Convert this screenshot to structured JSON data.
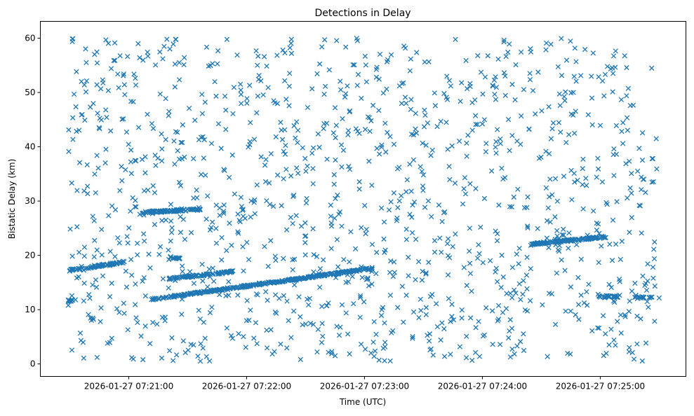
{
  "chart_data": {
    "type": "scatter",
    "title": "Detections in Delay",
    "xlabel": "Time (UTC)",
    "ylabel": "Bistatic Delay (km)",
    "x_unit": "seconds after 2026-01-27 07:20:00",
    "xlim": [
      15,
      343.6
    ],
    "ylim": [
      -2.3,
      63.1
    ],
    "x_ticks": [
      {
        "value": 60,
        "label": "2026-01-27 07:21:00"
      },
      {
        "value": 120,
        "label": "2026-01-27 07:22:00"
      },
      {
        "value": 180,
        "label": "2026-01-27 07:23:00"
      },
      {
        "value": 240,
        "label": "2026-01-27 07:24:00"
      },
      {
        "value": 300,
        "label": "2026-01-27 07:25:00"
      }
    ],
    "y_ticks": [
      {
        "value": 0,
        "label": "0"
      },
      {
        "value": 10,
        "label": "10"
      },
      {
        "value": 20,
        "label": "20"
      },
      {
        "value": 30,
        "label": "30"
      },
      {
        "value": 40,
        "label": "40"
      },
      {
        "value": 50,
        "label": "50"
      },
      {
        "value": 60,
        "label": "60"
      }
    ],
    "marker": "x",
    "color": "#1f77b4",
    "grid": false,
    "tracks": [
      {
        "t0": 29.3,
        "y0": 17.2,
        "t1": 57.9,
        "y1": 18.8,
        "n": 70
      },
      {
        "t0": 29.3,
        "y0": 11.7,
        "t1": 32.9,
        "y1": 11.7,
        "n": 12
      },
      {
        "t0": 72.1,
        "y0": 11.9,
        "t1": 183.9,
        "y1": 17.6,
        "n": 320
      },
      {
        "t0": 67.1,
        "y0": 27.9,
        "t1": 97.1,
        "y1": 28.5,
        "n": 90
      },
      {
        "t0": 80.0,
        "y0": 15.7,
        "t1": 113.2,
        "y1": 17.0,
        "n": 90
      },
      {
        "t0": 81.0,
        "y0": 19.6,
        "t1": 86.0,
        "y1": 19.4,
        "n": 15
      },
      {
        "t0": 265.0,
        "y0": 22.1,
        "t1": 303.0,
        "y1": 23.4,
        "n": 120
      },
      {
        "t0": 299.0,
        "y0": 12.4,
        "t1": 309.0,
        "y1": 12.4,
        "n": 30
      },
      {
        "t0": 317.0,
        "y0": 12.2,
        "t1": 330.0,
        "y1": 12.2,
        "n": 15
      }
    ],
    "noise": {
      "count": 1250,
      "t_range": [
        29,
        329
      ],
      "y_range": [
        0.5,
        60
      ],
      "seed": 7
    }
  }
}
